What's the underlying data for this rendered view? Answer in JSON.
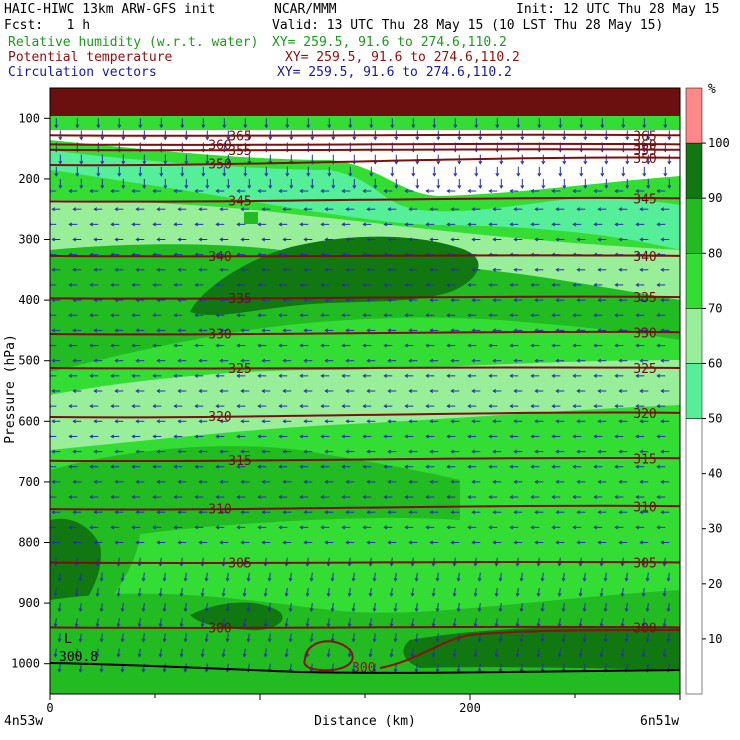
{
  "header": {
    "left_title": "HAIC-HIWC 13km ARW-GFS init",
    "center_title": "NCAR/MMM",
    "init": "Init: 12 UTC Thu 28 May 15",
    "fcst": "Fcst:   1 h",
    "valid": "Valid: 13 UTC Thu 28 May 15 (10 LST Thu 28 May 15)",
    "fields": [
      {
        "name": "Relative humidity (w.r.t. water)",
        "xy": "XY= 259.5, 91.6 to 274.6,110.2",
        "color": "#1a9a1a"
      },
      {
        "name": "Potential temperature",
        "xy": "XY= 259.5, 91.6 to 274.6,110.2",
        "color": "#8b1010"
      },
      {
        "name": "Circulation vectors",
        "xy": "XY= 259.5, 91.6 to 274.6,110.2",
        "color": "#1a1a9a"
      }
    ]
  },
  "chart_data": {
    "type": "heatmap",
    "ylabel": "Pressure (hPa)",
    "xlabel": "Distance (km)",
    "x_ticks": [
      0,
      200
    ],
    "y_ticks": [
      100,
      200,
      300,
      400,
      500,
      600,
      700,
      800,
      900,
      1000
    ],
    "xlim": [
      0,
      300
    ],
    "ylim": [
      1050,
      50
    ],
    "x_endpoints": {
      "left": "4n53w",
      "right": "6n51w"
    },
    "colorbar": {
      "unit": "%",
      "ticks": [
        10,
        20,
        30,
        40,
        50,
        60,
        70,
        80,
        90,
        100
      ],
      "bands": [
        {
          "from": 0,
          "to": 50,
          "color": "#ffffff"
        },
        {
          "from": 50,
          "to": 60,
          "color": "#55ee99"
        },
        {
          "from": 60,
          "to": 70,
          "color": "#99ee99"
        },
        {
          "from": 70,
          "to": 80,
          "color": "#33dd33"
        },
        {
          "from": 80,
          "to": 90,
          "color": "#22bb22"
        },
        {
          "from": 90,
          "to": 100,
          "color": "#117711"
        },
        {
          "from": 100,
          "to": 110,
          "color": "#ff8888"
        }
      ]
    },
    "theta_contours": [
      {
        "label": "365",
        "p": 128,
        "slope": 0
      },
      {
        "label": "360",
        "p": 143,
        "slope": 0
      },
      {
        "label": "355",
        "p": 152,
        "slope": 0
      },
      {
        "label": "350",
        "p": 177,
        "slope": -12
      },
      {
        "label": "345",
        "p": 237,
        "slope": -5
      },
      {
        "label": "340",
        "p": 327,
        "slope": 0
      },
      {
        "label": "335",
        "p": 397,
        "slope": -2
      },
      {
        "label": "330",
        "p": 456,
        "slope": -3
      },
      {
        "label": "325",
        "p": 512,
        "slope": 0
      },
      {
        "label": "320",
        "p": 593,
        "slope": -7
      },
      {
        "label": "315",
        "p": 665,
        "slope": -4
      },
      {
        "label": "310",
        "p": 745,
        "slope": -5
      },
      {
        "label": "305",
        "p": 833,
        "slope": 0
      },
      {
        "label": "300",
        "p": 940,
        "slope": 0
      }
    ],
    "theta_units_note": "",
    "surface_low_label": "L",
    "surface_low_value": "300.8",
    "surface_min_label": "300",
    "wind_vectors": {
      "rows_p": [
        100,
        120,
        140,
        160,
        180,
        200,
        220,
        250,
        275,
        300,
        325,
        350,
        375,
        400,
        425,
        450,
        475,
        500,
        525,
        550,
        575,
        600,
        625,
        650,
        675,
        700,
        725,
        750,
        775,
        800,
        825,
        850,
        875,
        900,
        925,
        950,
        975,
        1000
      ],
      "col_spacing_km": 5
    }
  }
}
